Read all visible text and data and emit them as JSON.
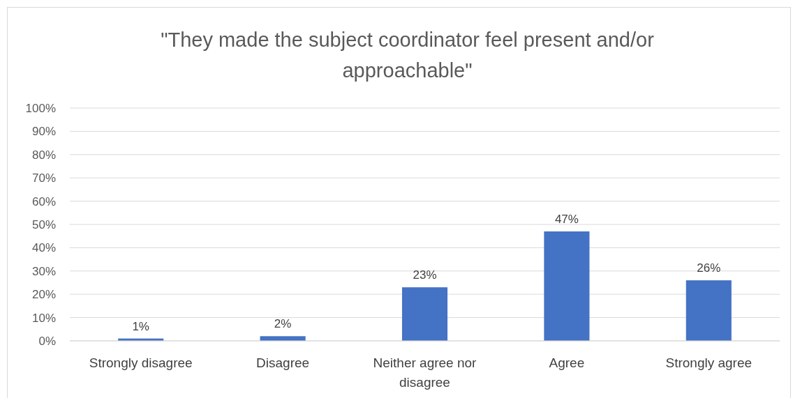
{
  "chart_data": {
    "type": "bar",
    "title": "\"They made the subject coordinator feel present and/or approachable\"",
    "categories": [
      "Strongly disagree",
      "Disagree",
      "Neither agree nor disagree",
      "Agree",
      "Strongly agree"
    ],
    "values": [
      1,
      2,
      23,
      47,
      26
    ],
    "value_labels": [
      "1%",
      "2%",
      "23%",
      "47%",
      "26%"
    ],
    "color": "#4472c4",
    "ylim": [
      0,
      100
    ],
    "yticks": [
      {
        "value": 0,
        "label": "0%"
      },
      {
        "value": 10,
        "label": "10%"
      },
      {
        "value": 20,
        "label": "20%"
      },
      {
        "value": 30,
        "label": "30%"
      },
      {
        "value": 40,
        "label": "40%"
      },
      {
        "value": 50,
        "label": "50%"
      },
      {
        "value": 60,
        "label": "60%"
      },
      {
        "value": 70,
        "label": "70%"
      },
      {
        "value": 80,
        "label": "80%"
      },
      {
        "value": 90,
        "label": "90%"
      },
      {
        "value": 100,
        "label": "100%"
      }
    ],
    "grid": "y"
  }
}
